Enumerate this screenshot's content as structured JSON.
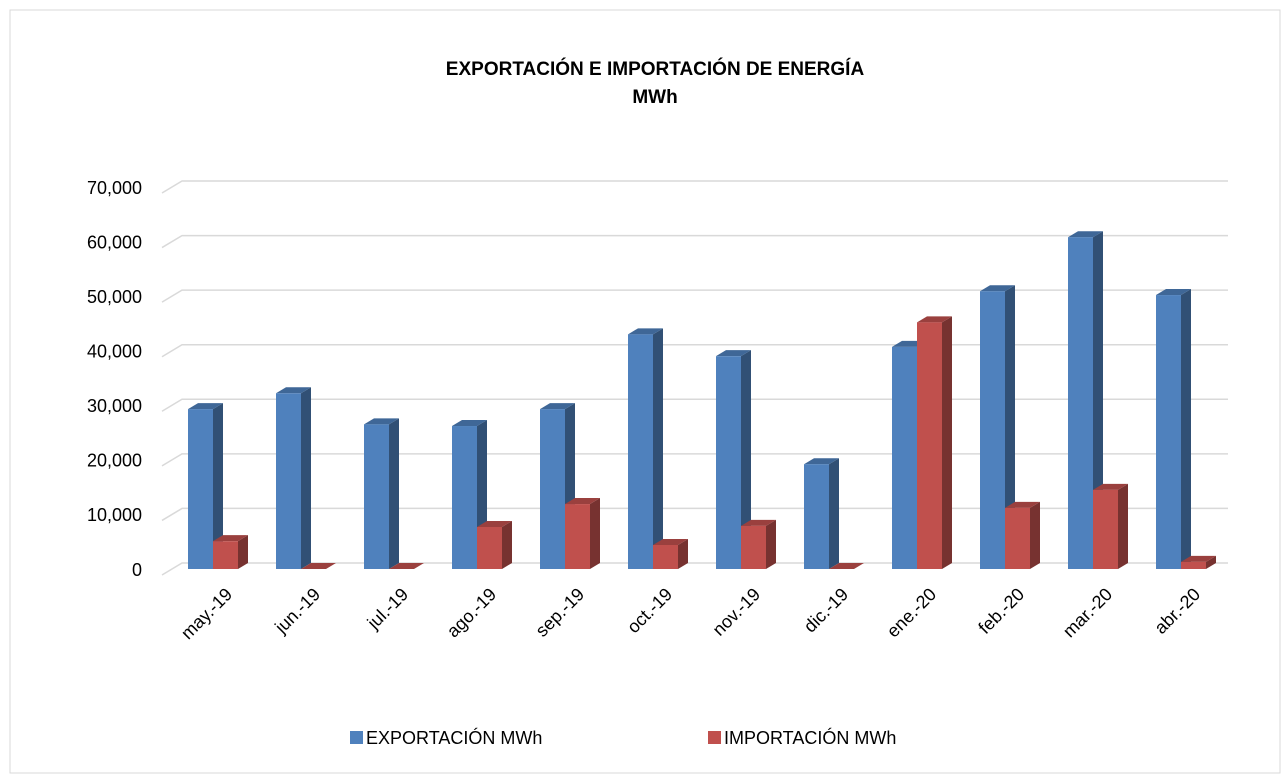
{
  "chart_data": {
    "type": "bar3d",
    "title": "EXPORTACIÓN  E  IMPORTACIÓN  DE  ENERGÍA",
    "subtitle": "MWh",
    "categories": [
      "may.-19",
      "jun.-19",
      "jul.-19",
      "ago.-19",
      "sep.-19",
      "oct.-19",
      "nov.-19",
      "dic.-19",
      "ene.-20",
      "feb.-20",
      "mar.-20",
      "abr.-20"
    ],
    "series": [
      {
        "name": "EXPORTACIÓN MWh",
        "color": "#4f81bd",
        "values": [
          29300,
          32200,
          26500,
          26200,
          29300,
          43000,
          39000,
          19200,
          40700,
          50900,
          60800,
          50200
        ]
      },
      {
        "name": "IMPORTACIÓN MWh",
        "color": "#c0504d",
        "values": [
          5100,
          0,
          0,
          7700,
          11900,
          4400,
          7900,
          0,
          45200,
          11200,
          14500,
          1300
        ]
      }
    ],
    "ylim": [
      0,
      70000
    ],
    "yticks": [
      0,
      {
        "value": 10000,
        "label": "10,000"
      },
      {
        "value": 20000,
        "label": "20,000"
      },
      {
        "value": 30000,
        "label": "30,000"
      },
      {
        "value": 40000,
        "label": "40,000"
      },
      {
        "value": 50000,
        "label": "50,000"
      },
      {
        "value": 60000,
        "label": "60,000"
      },
      {
        "value": 70000,
        "label": "70,000"
      }
    ],
    "grid": true,
    "legend": "bottom"
  }
}
